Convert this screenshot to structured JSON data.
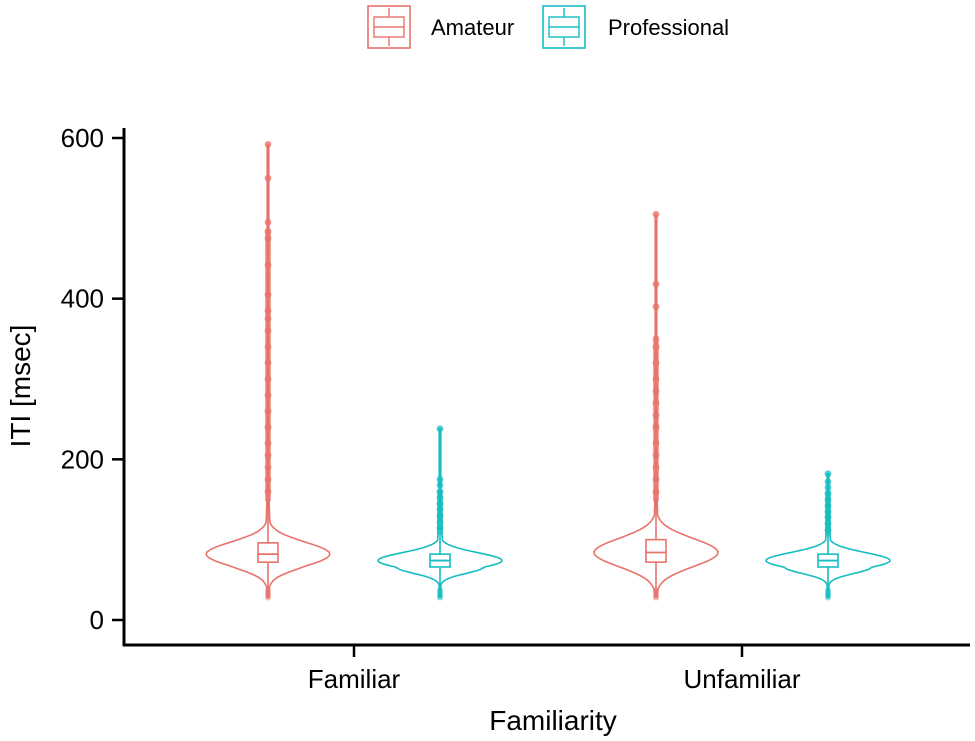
{
  "chart_data": {
    "type": "violin",
    "xlabel": "Familiarity",
    "ylabel": "ITI [msec]",
    "categories": [
      "Familiar",
      "Unfamiliar"
    ],
    "ylim": [
      -10,
      610
    ],
    "yticks": [
      0,
      200,
      400,
      600
    ],
    "grid": false,
    "legend": {
      "position": "top",
      "entries": [
        "Amateur",
        "Professional"
      ]
    },
    "series": [
      {
        "name": "Amateur",
        "color": "#E8736A",
        "groups": [
          {
            "category": "Familiar",
            "min": 28,
            "q1": 72,
            "median": 82,
            "q3": 96,
            "whisker_high": 150,
            "outliers": [
              160,
              175,
              190,
              205,
              220,
              240,
              260,
              280,
              300,
              320,
              340,
              360,
              375,
              385,
              405,
              442,
              475,
              484,
              495,
              550,
              592
            ]
          },
          {
            "category": "Unfamiliar",
            "min": 28,
            "q1": 72,
            "median": 84,
            "q3": 100,
            "whisker_high": 150,
            "outliers": [
              160,
              175,
              190,
              205,
              220,
              240,
              255,
              270,
              285,
              300,
              320,
              340,
              350,
              390,
              418,
              505
            ]
          }
        ]
      },
      {
        "name": "Professional",
        "color": "#16BDC2",
        "groups": [
          {
            "category": "Familiar",
            "min": 28,
            "q1": 66,
            "median": 74,
            "q3": 82,
            "whisker_high": 110,
            "outliers": [
              115,
              122,
              130,
              138,
              145,
              152,
              160,
              168,
              175,
              238
            ]
          },
          {
            "category": "Unfamiliar",
            "min": 28,
            "q1": 66,
            "median": 74,
            "q3": 82,
            "whisker_high": 108,
            "outliers": [
              112,
              120,
              128,
              135,
              142,
              150,
              158,
              165,
              172,
              182
            ]
          }
        ]
      }
    ]
  }
}
